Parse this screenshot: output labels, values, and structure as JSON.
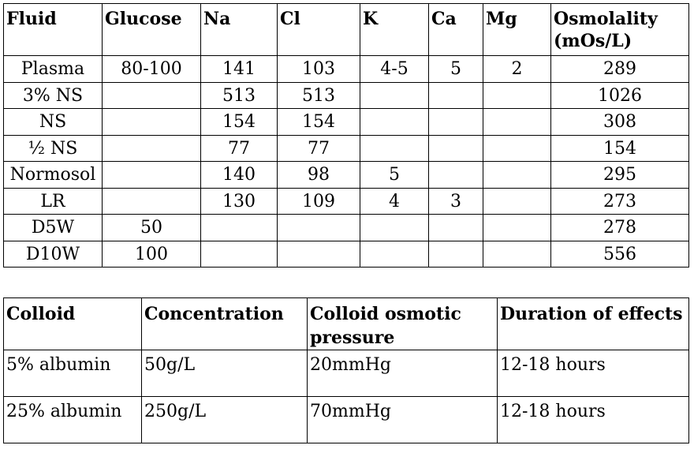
{
  "fluid_table": {
    "headers": [
      "Fluid",
      "Glucose",
      "Na",
      "Cl",
      "K",
      "Ca",
      "Mg",
      "Osmolality (mOs/L)"
    ],
    "rows": [
      [
        "Plasma",
        "80-100",
        "141",
        "103",
        "4-5",
        "5",
        "2",
        "289"
      ],
      [
        "3% NS",
        "",
        "513",
        "513",
        "",
        "",
        "",
        "1026"
      ],
      [
        "NS",
        "",
        "154",
        "154",
        "",
        "",
        "",
        "308"
      ],
      [
        "½ NS",
        "",
        "77",
        "77",
        "",
        "",
        "",
        "154"
      ],
      [
        "Normosol",
        "",
        "140",
        "98",
        "5",
        "",
        "",
        "295"
      ],
      [
        "LR",
        "",
        "130",
        "109",
        "4",
        "3",
        "",
        "273"
      ],
      [
        "D5W",
        "50",
        "",
        "",
        "",
        "",
        "",
        "278"
      ],
      [
        "D10W",
        "100",
        "",
        "",
        "",
        "",
        "",
        "556"
      ]
    ]
  },
  "colloid_table": {
    "headers": [
      "Colloid",
      "Concentration",
      "Colloid osmotic pressure",
      "Duration of effects"
    ],
    "rows": [
      [
        "5% albumin",
        "50g/L",
        "20mmHg",
        "12-18 hours"
      ],
      [
        "25% albumin",
        "250g/L",
        "70mmHg",
        "12-18 hours"
      ]
    ]
  }
}
